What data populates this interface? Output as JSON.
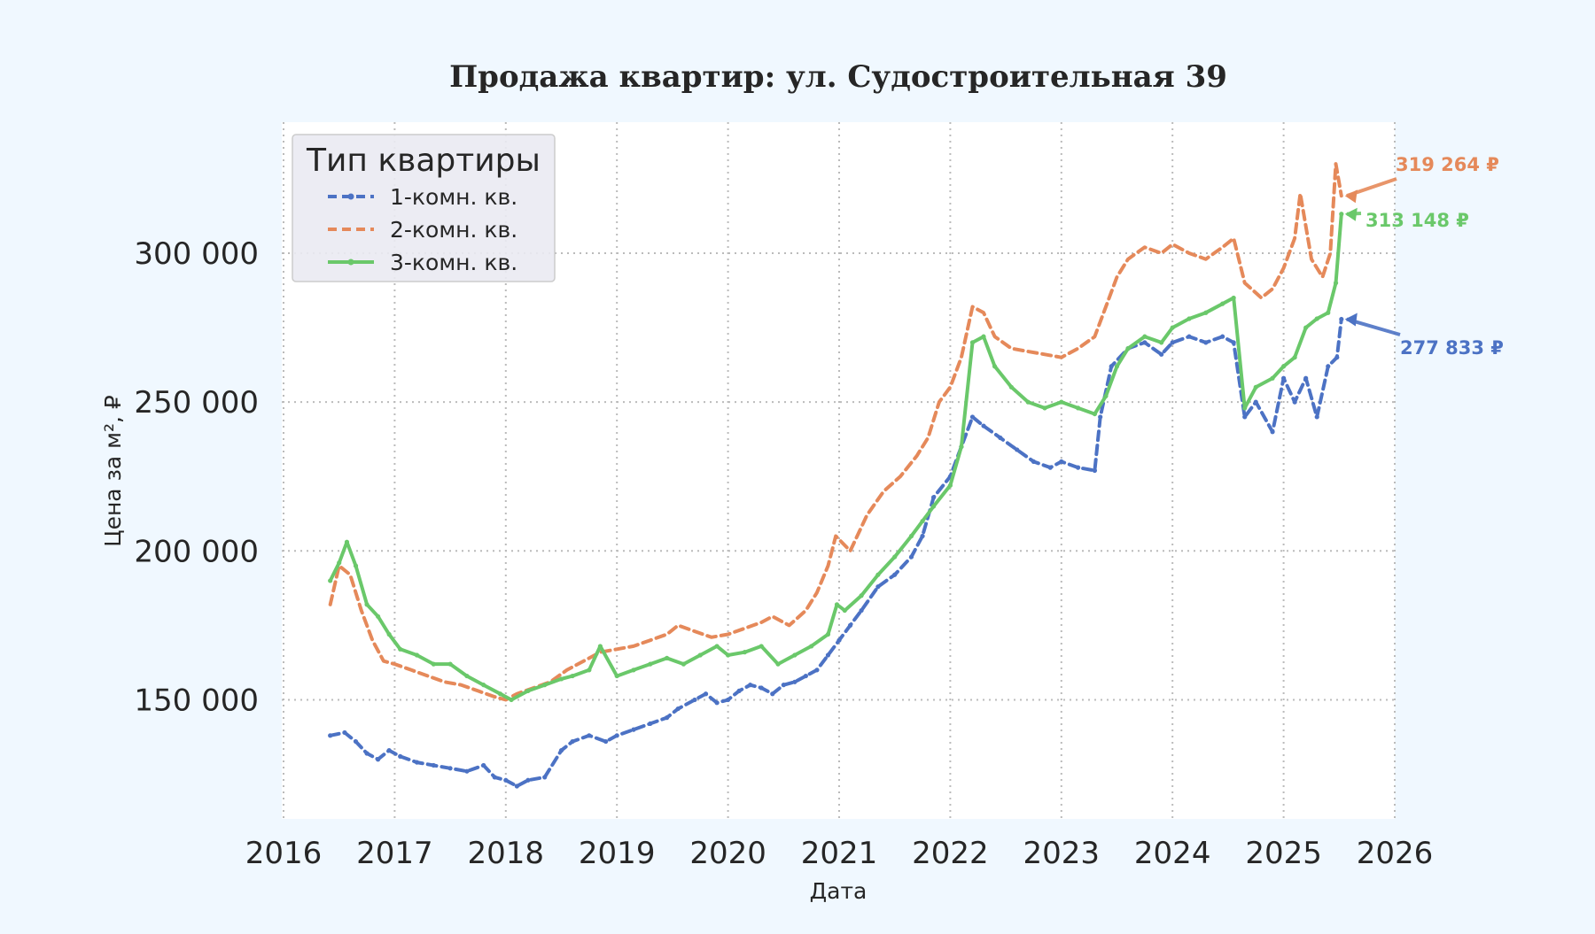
{
  "chart_data": {
    "type": "line",
    "title": "Продажа квартир: ул. Судостроительная 39",
    "xlabel": "Дата",
    "ylabel": "Цена за м², ₽",
    "xlim": [
      2016.0,
      2026.0
    ],
    "ylim": [
      110000,
      344000
    ],
    "x_ticks": [
      {
        "value": 2016,
        "label": "2016"
      },
      {
        "value": 2017,
        "label": "2017"
      },
      {
        "value": 2018,
        "label": "2018"
      },
      {
        "value": 2019,
        "label": "2019"
      },
      {
        "value": 2020,
        "label": "2020"
      },
      {
        "value": 2021,
        "label": "2021"
      },
      {
        "value": 2022,
        "label": "2022"
      },
      {
        "value": 2023,
        "label": "2023"
      },
      {
        "value": 2024,
        "label": "2024"
      },
      {
        "value": 2025,
        "label": "2025"
      },
      {
        "value": 2026,
        "label": "2026"
      }
    ],
    "y_ticks": [
      {
        "value": 150000,
        "label": "150 000"
      },
      {
        "value": 200000,
        "label": "200 000"
      },
      {
        "value": 250000,
        "label": "250 000"
      },
      {
        "value": 300000,
        "label": "300 000"
      }
    ],
    "grid": true,
    "legend": {
      "title": "Тип квартиры",
      "placement": "top-left"
    },
    "series": [
      {
        "name": "1-комн. кв.",
        "color": "#4C72C4",
        "style": "dashed-markers",
        "x": [
          2016.42,
          2016.55,
          2016.65,
          2016.75,
          2016.85,
          2016.95,
          2017.05,
          2017.2,
          2017.35,
          2017.5,
          2017.65,
          2017.8,
          2017.9,
          2018.0,
          2018.1,
          2018.2,
          2018.35,
          2018.5,
          2018.6,
          2018.75,
          2018.9,
          2019.0,
          2019.15,
          2019.3,
          2019.45,
          2019.55,
          2019.7,
          2019.8,
          2019.9,
          2020.0,
          2020.1,
          2020.2,
          2020.3,
          2020.4,
          2020.5,
          2020.6,
          2020.7,
          2020.8,
          2020.9,
          2021.0,
          2021.1,
          2021.2,
          2021.35,
          2021.5,
          2021.65,
          2021.75,
          2021.85,
          2022.0,
          2022.1,
          2022.2,
          2022.3,
          2022.45,
          2022.6,
          2022.75,
          2022.9,
          2023.0,
          2023.15,
          2023.3,
          2023.35,
          2023.45,
          2023.6,
          2023.75,
          2023.9,
          2024.0,
          2024.15,
          2024.3,
          2024.45,
          2024.55,
          2024.65,
          2024.75,
          2024.9,
          2025.0,
          2025.1,
          2025.2,
          2025.3,
          2025.4,
          2025.48,
          2025.52
        ],
        "values": [
          138000,
          139000,
          136000,
          132000,
          130000,
          133000,
          131000,
          129000,
          128000,
          127000,
          126000,
          128000,
          124000,
          123000,
          121000,
          123000,
          124000,
          133000,
          136000,
          138000,
          136000,
          138000,
          140000,
          142000,
          144000,
          147000,
          150000,
          152000,
          149000,
          150000,
          153000,
          155000,
          154000,
          152000,
          155000,
          156000,
          158000,
          160000,
          165000,
          170000,
          175000,
          180000,
          188000,
          192000,
          198000,
          205000,
          218000,
          225000,
          235000,
          245000,
          242000,
          238000,
          234000,
          230000,
          228000,
          230000,
          228000,
          227000,
          245000,
          262000,
          268000,
          270000,
          266000,
          270000,
          272000,
          270000,
          272000,
          270000,
          245000,
          250000,
          240000,
          258000,
          250000,
          258000,
          245000,
          262000,
          265000,
          277833
        ],
        "end_label": "277 833 ₽"
      },
      {
        "name": "2-комн. кв.",
        "color": "#E5895A",
        "style": "dashed",
        "x": [
          2016.42,
          2016.5,
          2016.6,
          2016.7,
          2016.8,
          2016.9,
          2017.0,
          2017.15,
          2017.3,
          2017.45,
          2017.6,
          2017.75,
          2017.9,
          2018.0,
          2018.1,
          2018.25,
          2018.4,
          2018.55,
          2018.7,
          2018.85,
          2019.0,
          2019.15,
          2019.3,
          2019.45,
          2019.55,
          2019.7,
          2019.85,
          2020.0,
          2020.15,
          2020.3,
          2020.4,
          2020.55,
          2020.7,
          2020.8,
          2020.9,
          2020.97,
          2021.1,
          2021.25,
          2021.4,
          2021.55,
          2021.7,
          2021.8,
          2021.9,
          2022.0,
          2022.1,
          2022.2,
          2022.3,
          2022.4,
          2022.55,
          2022.7,
          2022.85,
          2023.0,
          2023.15,
          2023.3,
          2023.4,
          2023.5,
          2023.6,
          2023.75,
          2023.9,
          2024.0,
          2024.15,
          2024.3,
          2024.45,
          2024.55,
          2024.65,
          2024.8,
          2024.9,
          2025.0,
          2025.1,
          2025.15,
          2025.25,
          2025.35,
          2025.42,
          2025.47,
          2025.52
        ],
        "values": [
          182000,
          195000,
          192000,
          180000,
          170000,
          163000,
          162000,
          160000,
          158000,
          156000,
          155000,
          153000,
          151000,
          150000,
          152000,
          154000,
          156000,
          160000,
          163000,
          166000,
          167000,
          168000,
          170000,
          172000,
          175000,
          173000,
          171000,
          172000,
          174000,
          176000,
          178000,
          175000,
          180000,
          186000,
          195000,
          205000,
          200000,
          212000,
          220000,
          225000,
          232000,
          238000,
          250000,
          255000,
          265000,
          282000,
          280000,
          272000,
          268000,
          267000,
          266000,
          265000,
          268000,
          272000,
          282000,
          292000,
          298000,
          302000,
          300000,
          303000,
          300000,
          298000,
          302000,
          305000,
          290000,
          285000,
          288000,
          295000,
          305000,
          320000,
          298000,
          292000,
          300000,
          330000,
          319264
        ],
        "end_label": "319 264 ₽"
      },
      {
        "name": "3-комн. кв.",
        "color": "#6AC86A",
        "style": "solid-markers",
        "x": [
          2016.42,
          2016.5,
          2016.57,
          2016.65,
          2016.75,
          2016.85,
          2016.95,
          2017.05,
          2017.2,
          2017.35,
          2017.5,
          2017.65,
          2017.8,
          2017.95,
          2018.05,
          2018.2,
          2018.35,
          2018.5,
          2018.6,
          2018.75,
          2018.85,
          2019.0,
          2019.15,
          2019.3,
          2019.45,
          2019.6,
          2019.75,
          2019.9,
          2020.0,
          2020.15,
          2020.3,
          2020.45,
          2020.6,
          2020.75,
          2020.9,
          2020.98,
          2021.05,
          2021.2,
          2021.35,
          2021.5,
          2021.65,
          2021.75,
          2021.85,
          2022.0,
          2022.1,
          2022.2,
          2022.3,
          2022.4,
          2022.55,
          2022.7,
          2022.85,
          2023.0,
          2023.15,
          2023.3,
          2023.4,
          2023.5,
          2023.6,
          2023.75,
          2023.9,
          2024.0,
          2024.15,
          2024.3,
          2024.45,
          2024.55,
          2024.65,
          2024.75,
          2024.9,
          2025.0,
          2025.1,
          2025.2,
          2025.3,
          2025.4,
          2025.47,
          2025.52
        ],
        "values": [
          190000,
          196000,
          203000,
          195000,
          182000,
          178000,
          172000,
          167000,
          165000,
          162000,
          162000,
          158000,
          155000,
          152000,
          150000,
          153000,
          155000,
          157000,
          158000,
          160000,
          168000,
          158000,
          160000,
          162000,
          164000,
          162000,
          165000,
          168000,
          165000,
          166000,
          168000,
          162000,
          165000,
          168000,
          172000,
          182000,
          180000,
          185000,
          192000,
          198000,
          205000,
          210000,
          215000,
          222000,
          235000,
          270000,
          272000,
          262000,
          255000,
          250000,
          248000,
          250000,
          248000,
          246000,
          252000,
          262000,
          268000,
          272000,
          270000,
          275000,
          278000,
          280000,
          283000,
          285000,
          248000,
          255000,
          258000,
          262000,
          265000,
          275000,
          278000,
          280000,
          290000,
          313148
        ],
        "end_label": "313 148 ₽"
      }
    ]
  }
}
